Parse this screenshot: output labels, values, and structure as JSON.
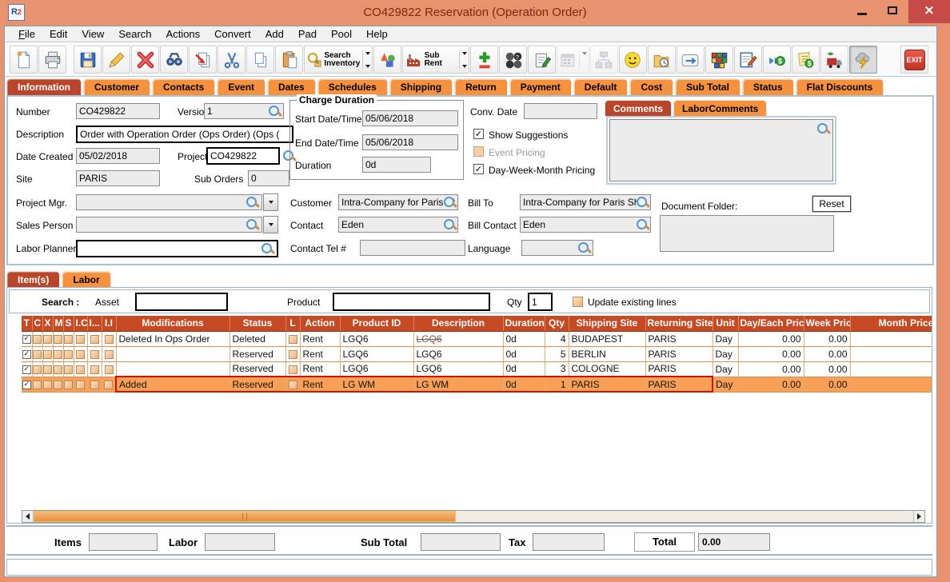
{
  "window": {
    "title": "CO429822 Reservation (Operation Order)",
    "app_icon_r": "R",
    "app_icon_2": "2"
  },
  "menu": {
    "items": [
      "File",
      "Edit",
      "View",
      "Search",
      "Actions",
      "Convert",
      "Add",
      "Pad",
      "Pool",
      "Help"
    ]
  },
  "toolbar": {
    "search_inventory_label": "Search Inventory",
    "sub_rent_label": "Sub Rent",
    "exit_label": "EXIT"
  },
  "tabs": {
    "active": "Information",
    "items": [
      "Information",
      "Customer",
      "Contacts",
      "Event",
      "Dates",
      "Schedules",
      "Shipping",
      "Return",
      "Payment",
      "Default",
      "Cost",
      "Sub Total",
      "Status",
      "Flat Discounts"
    ]
  },
  "info": {
    "number_label": "Number",
    "number_value": "CO429822",
    "version_label": "Version",
    "version_value": "1",
    "description_label": "Description",
    "description_value": "Order with Operation Order (Ops Order) (Ops (",
    "date_created_label": "Date Created",
    "date_created_value": "05/02/2018",
    "project_label": "Project",
    "project_value": "CO429822",
    "site_label": "Site",
    "site_value": "PARIS",
    "sub_orders_label": "Sub Orders",
    "sub_orders_value": "0",
    "project_mgr_label": "Project Mgr.",
    "project_mgr_value": "",
    "sales_person_label": "Sales Person",
    "sales_person_value": "",
    "labor_planner_label": "Labor Planner",
    "labor_planner_value": "",
    "charge_duration": {
      "title": "Charge Duration",
      "start_label": "Start Date/Time",
      "start_value": "05/06/2018",
      "end_label": "End Date/Time",
      "end_value": "05/06/2018",
      "duration_label": "Duration",
      "duration_value": "0d"
    },
    "conv_date_label": "Conv. Date",
    "conv_date_value": "",
    "show_suggestions_label": "Show Suggestions",
    "event_pricing_label": "Event Pricing",
    "day_week_month_label": "Day-Week-Month Pricing",
    "customer_label": "Customer",
    "customer_value": "Intra-Company for Paris Sh",
    "bill_to_label": "Bill To",
    "bill_to_value": "Intra-Company for Paris Sh",
    "contact_label": "Contact",
    "contact_value": "Eden",
    "bill_contact_label": "Bill Contact",
    "bill_contact_value": "Eden",
    "contact_tel_label": "Contact Tel #",
    "contact_tel_value": "",
    "language_label": "Language",
    "language_value": "",
    "comments_tab": "Comments",
    "labor_comments_tab": "LaborComments",
    "comments_value": "",
    "document_folder_label": "Document Folder:",
    "reset_label": "Reset",
    "document_folder_value": ""
  },
  "items_section": {
    "items_tab": "Item(s)",
    "labor_tab": "Labor",
    "search_label": "Search :",
    "asset_label": "Asset",
    "asset_value": "",
    "product_label": "Product",
    "product_value": "",
    "qty_label": "Qty",
    "qty_value": "1",
    "update_lines_label": "Update existing lines",
    "table": {
      "columns": [
        "T",
        "C",
        "X",
        "M",
        "S",
        "I.C",
        "I...",
        "I.I",
        "Modifications",
        "Status",
        "L",
        "Action",
        "Product ID",
        "Description",
        "Duration",
        "Qty",
        "Shipping Site",
        "Returning Site",
        "Unit",
        "Day/Each Price",
        "Week Price",
        "Month Price"
      ],
      "rows": [
        {
          "selected": false,
          "strike": true,
          "checks": [
            true,
            false,
            false,
            false,
            false,
            false,
            false,
            false
          ],
          "modifications": "Deleted In Ops Order",
          "status": "Deleted",
          "l_checked": false,
          "action": "Rent",
          "product_id": "LGQ6",
          "description": "LGQ6",
          "duration": "0d",
          "qty": "4",
          "shipping_site": "BUDAPEST",
          "returning_site": "PARIS",
          "unit": "Day",
          "day_each_price": "0.00",
          "week_price": "0.00",
          "month_price": ""
        },
        {
          "selected": false,
          "strike": false,
          "checks": [
            true,
            false,
            false,
            false,
            false,
            false,
            false,
            false
          ],
          "modifications": "",
          "status": "Reserved",
          "l_checked": false,
          "action": "Rent",
          "product_id": "LGQ6",
          "description": "LGQ6",
          "duration": "0d",
          "qty": "5",
          "shipping_site": "BERLIN",
          "returning_site": "PARIS",
          "unit": "Day",
          "day_each_price": "0.00",
          "week_price": "0.00",
          "month_price": ""
        },
        {
          "selected": false,
          "strike": false,
          "checks": [
            true,
            false,
            false,
            false,
            false,
            false,
            false,
            false
          ],
          "modifications": "",
          "status": "Reserved",
          "l_checked": false,
          "action": "Rent",
          "product_id": "LGQ6",
          "description": "LGQ6",
          "duration": "0d",
          "qty": "3",
          "shipping_site": "COLOGNE",
          "returning_site": "PARIS",
          "unit": "Day",
          "day_each_price": "0.00",
          "week_price": "0.00",
          "month_price": ""
        },
        {
          "selected": true,
          "strike": false,
          "checks": [
            true,
            false,
            false,
            false,
            false,
            false,
            false,
            false
          ],
          "modifications": "Added",
          "status": "Reserved",
          "l_checked": false,
          "action": "Rent",
          "product_id": "LG WM",
          "description": "LG WM",
          "duration": "0d",
          "qty": "1",
          "shipping_site": "PARIS",
          "returning_site": "PARIS",
          "unit": "Day",
          "day_each_price": "0.00",
          "week_price": "0.00",
          "month_price": ""
        }
      ]
    }
  },
  "footer": {
    "items_label": "Items",
    "items_value": "",
    "labor_label": "Labor",
    "labor_value": "",
    "sub_total_label": "Sub Total",
    "sub_total_value": "",
    "tax_label": "Tax",
    "tax_value": "",
    "total_label": "Total",
    "total_value": "0.00"
  }
}
